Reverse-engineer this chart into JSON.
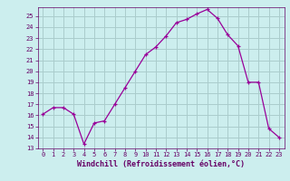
{
  "x": [
    0,
    1,
    2,
    3,
    4,
    5,
    6,
    7,
    8,
    9,
    10,
    11,
    12,
    13,
    14,
    15,
    16,
    17,
    18,
    19,
    20,
    21,
    22,
    23
  ],
  "y": [
    16.1,
    16.7,
    16.7,
    16.1,
    13.4,
    15.3,
    15.5,
    17.0,
    18.5,
    20.0,
    21.5,
    22.2,
    23.2,
    24.4,
    24.7,
    25.2,
    25.6,
    24.8,
    23.3,
    22.3,
    19.0,
    19.0,
    14.8,
    14.0
  ],
  "line_color": "#990099",
  "marker": "+",
  "bg_color": "#cceeee",
  "grid_color": "#aacccc",
  "xlabel": "Windchill (Refroidissement éolien,°C)",
  "xlabel_color": "#660066",
  "tick_color": "#660066",
  "ylim": [
    13,
    25.8
  ],
  "xlim": [
    -0.5,
    23.5
  ],
  "yticks": [
    13,
    14,
    15,
    16,
    17,
    18,
    19,
    20,
    21,
    22,
    23,
    24,
    25
  ],
  "xticks": [
    0,
    1,
    2,
    3,
    4,
    5,
    6,
    7,
    8,
    9,
    10,
    11,
    12,
    13,
    14,
    15,
    16,
    17,
    18,
    19,
    20,
    21,
    22,
    23
  ],
  "xtick_labels": [
    "0",
    "1",
    "2",
    "3",
    "4",
    "5",
    "6",
    "7",
    "8",
    "9",
    "10",
    "11",
    "12",
    "13",
    "14",
    "15",
    "16",
    "17",
    "18",
    "19",
    "20",
    "21",
    "22",
    "23"
  ],
  "ytick_labels": [
    "13",
    "14",
    "15",
    "16",
    "17",
    "18",
    "19",
    "20",
    "21",
    "22",
    "23",
    "24",
    "25"
  ]
}
